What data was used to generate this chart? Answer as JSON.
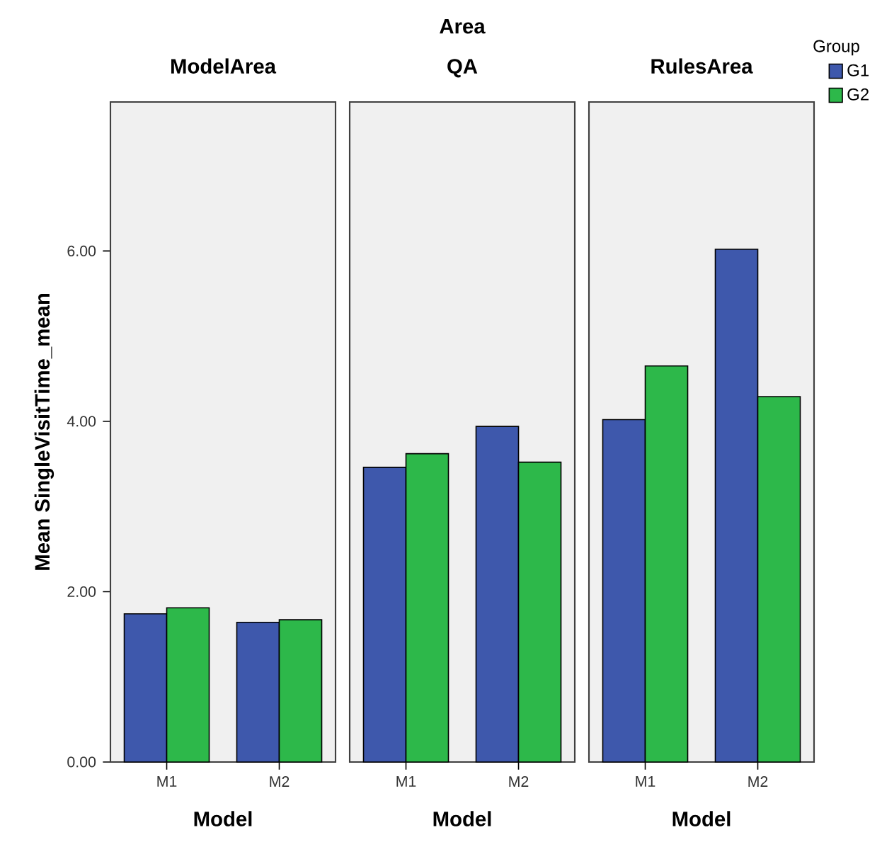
{
  "chart_data": [
    {
      "type": "bar",
      "subtitle": "ModelArea",
      "xlabel": "Model",
      "ylabel": "Mean SingleVisitTime_mean",
      "categories": [
        "M1",
        "M2"
      ],
      "series": [
        {
          "color": "#3e58ac",
          "values": [
            1.74,
            1.64
          ]
        },
        {
          "color": "#2db84a",
          "values": [
            1.81,
            1.67
          ]
        }
      ],
      "ylim": [
        0,
        7.75
      ],
      "yticks": [
        {
          "value": 0,
          "label": "0.00"
        },
        {
          "value": 2,
          "label": "2.00"
        },
        {
          "value": 4,
          "label": "4.00"
        },
        {
          "value": 6,
          "label": "6.00"
        }
      ]
    },
    {
      "type": "bar",
      "title": "Area",
      "subtitle": "QA",
      "xlabel": "Model",
      "categories": [
        "M1",
        "M2"
      ],
      "series": [
        {
          "color": "#3e58ac",
          "values": [
            3.46,
            3.94
          ]
        },
        {
          "color": "#2db84a",
          "values": [
            3.62,
            3.52
          ]
        }
      ],
      "ylim": [
        0,
        7.75
      ],
      "tick_labels": "x"
    },
    {
      "type": "bar",
      "subtitle": "RulesArea",
      "xlabel": "Model",
      "categories": [
        "M1",
        "M2"
      ],
      "legend": "right",
      "legend_title": "Group",
      "series": [
        {
          "name": "G1",
          "color": "#3e58ac",
          "values": [
            4.02,
            6.02
          ]
        },
        {
          "name": "G2",
          "color": "#2db84a",
          "values": [
            4.65,
            4.29
          ]
        }
      ],
      "ylim": [
        0,
        7.75
      ],
      "tick_labels": "x"
    }
  ]
}
